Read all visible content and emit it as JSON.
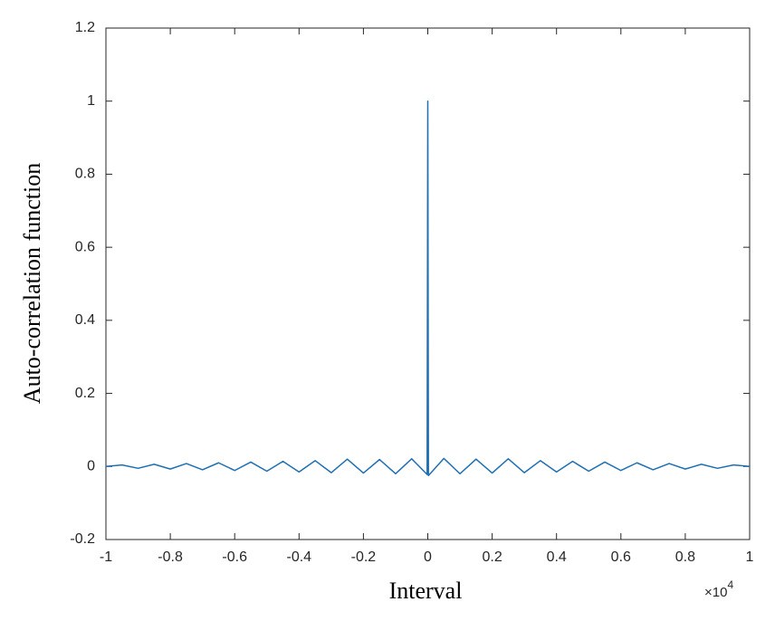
{
  "chart_data": {
    "type": "line",
    "xlabel": "Interval",
    "ylabel": "Auto-correlation function",
    "x_multiplier_base": "×10",
    "x_multiplier_exponent": "4",
    "xlim": [
      -1,
      1
    ],
    "ylim": [
      -0.2,
      1.2
    ],
    "xticks": [
      -1,
      -0.8,
      -0.6,
      -0.4,
      -0.2,
      0,
      0.2,
      0.4,
      0.6,
      0.8,
      1
    ],
    "yticks": [
      -0.2,
      0,
      0.2,
      0.4,
      0.6,
      0.8,
      1,
      1.2
    ],
    "grid": false,
    "series": [
      {
        "color": "#1f6fb3",
        "x": [
          -1,
          -0.95,
          -0.9,
          -0.85,
          -0.8,
          -0.75,
          -0.7,
          -0.65,
          -0.6,
          -0.55,
          -0.5,
          -0.45,
          -0.4,
          -0.35,
          -0.3,
          -0.25,
          -0.2,
          -0.15,
          -0.1,
          -0.05,
          -0.002,
          0,
          0.002,
          0.05,
          0.1,
          0.15,
          0.2,
          0.25,
          0.3,
          0.35,
          0.4,
          0.45,
          0.5,
          0.55,
          0.6,
          0.65,
          0.7,
          0.75,
          0.8,
          0.85,
          0.9,
          0.95,
          1
        ],
        "values": [
          0,
          0.004,
          -0.005,
          0.006,
          -0.007,
          0.008,
          -0.009,
          0.01,
          -0.011,
          0.012,
          -0.013,
          0.014,
          -0.015,
          0.016,
          -0.017,
          0.02,
          -0.018,
          0.019,
          -0.02,
          0.021,
          -0.022,
          1,
          -0.025,
          0.022,
          -0.02,
          0.02,
          -0.018,
          0.021,
          -0.017,
          0.016,
          -0.015,
          0.014,
          -0.013,
          0.012,
          -0.011,
          0.01,
          -0.009,
          0.008,
          -0.007,
          0.006,
          -0.005,
          0.004,
          0
        ]
      }
    ]
  }
}
